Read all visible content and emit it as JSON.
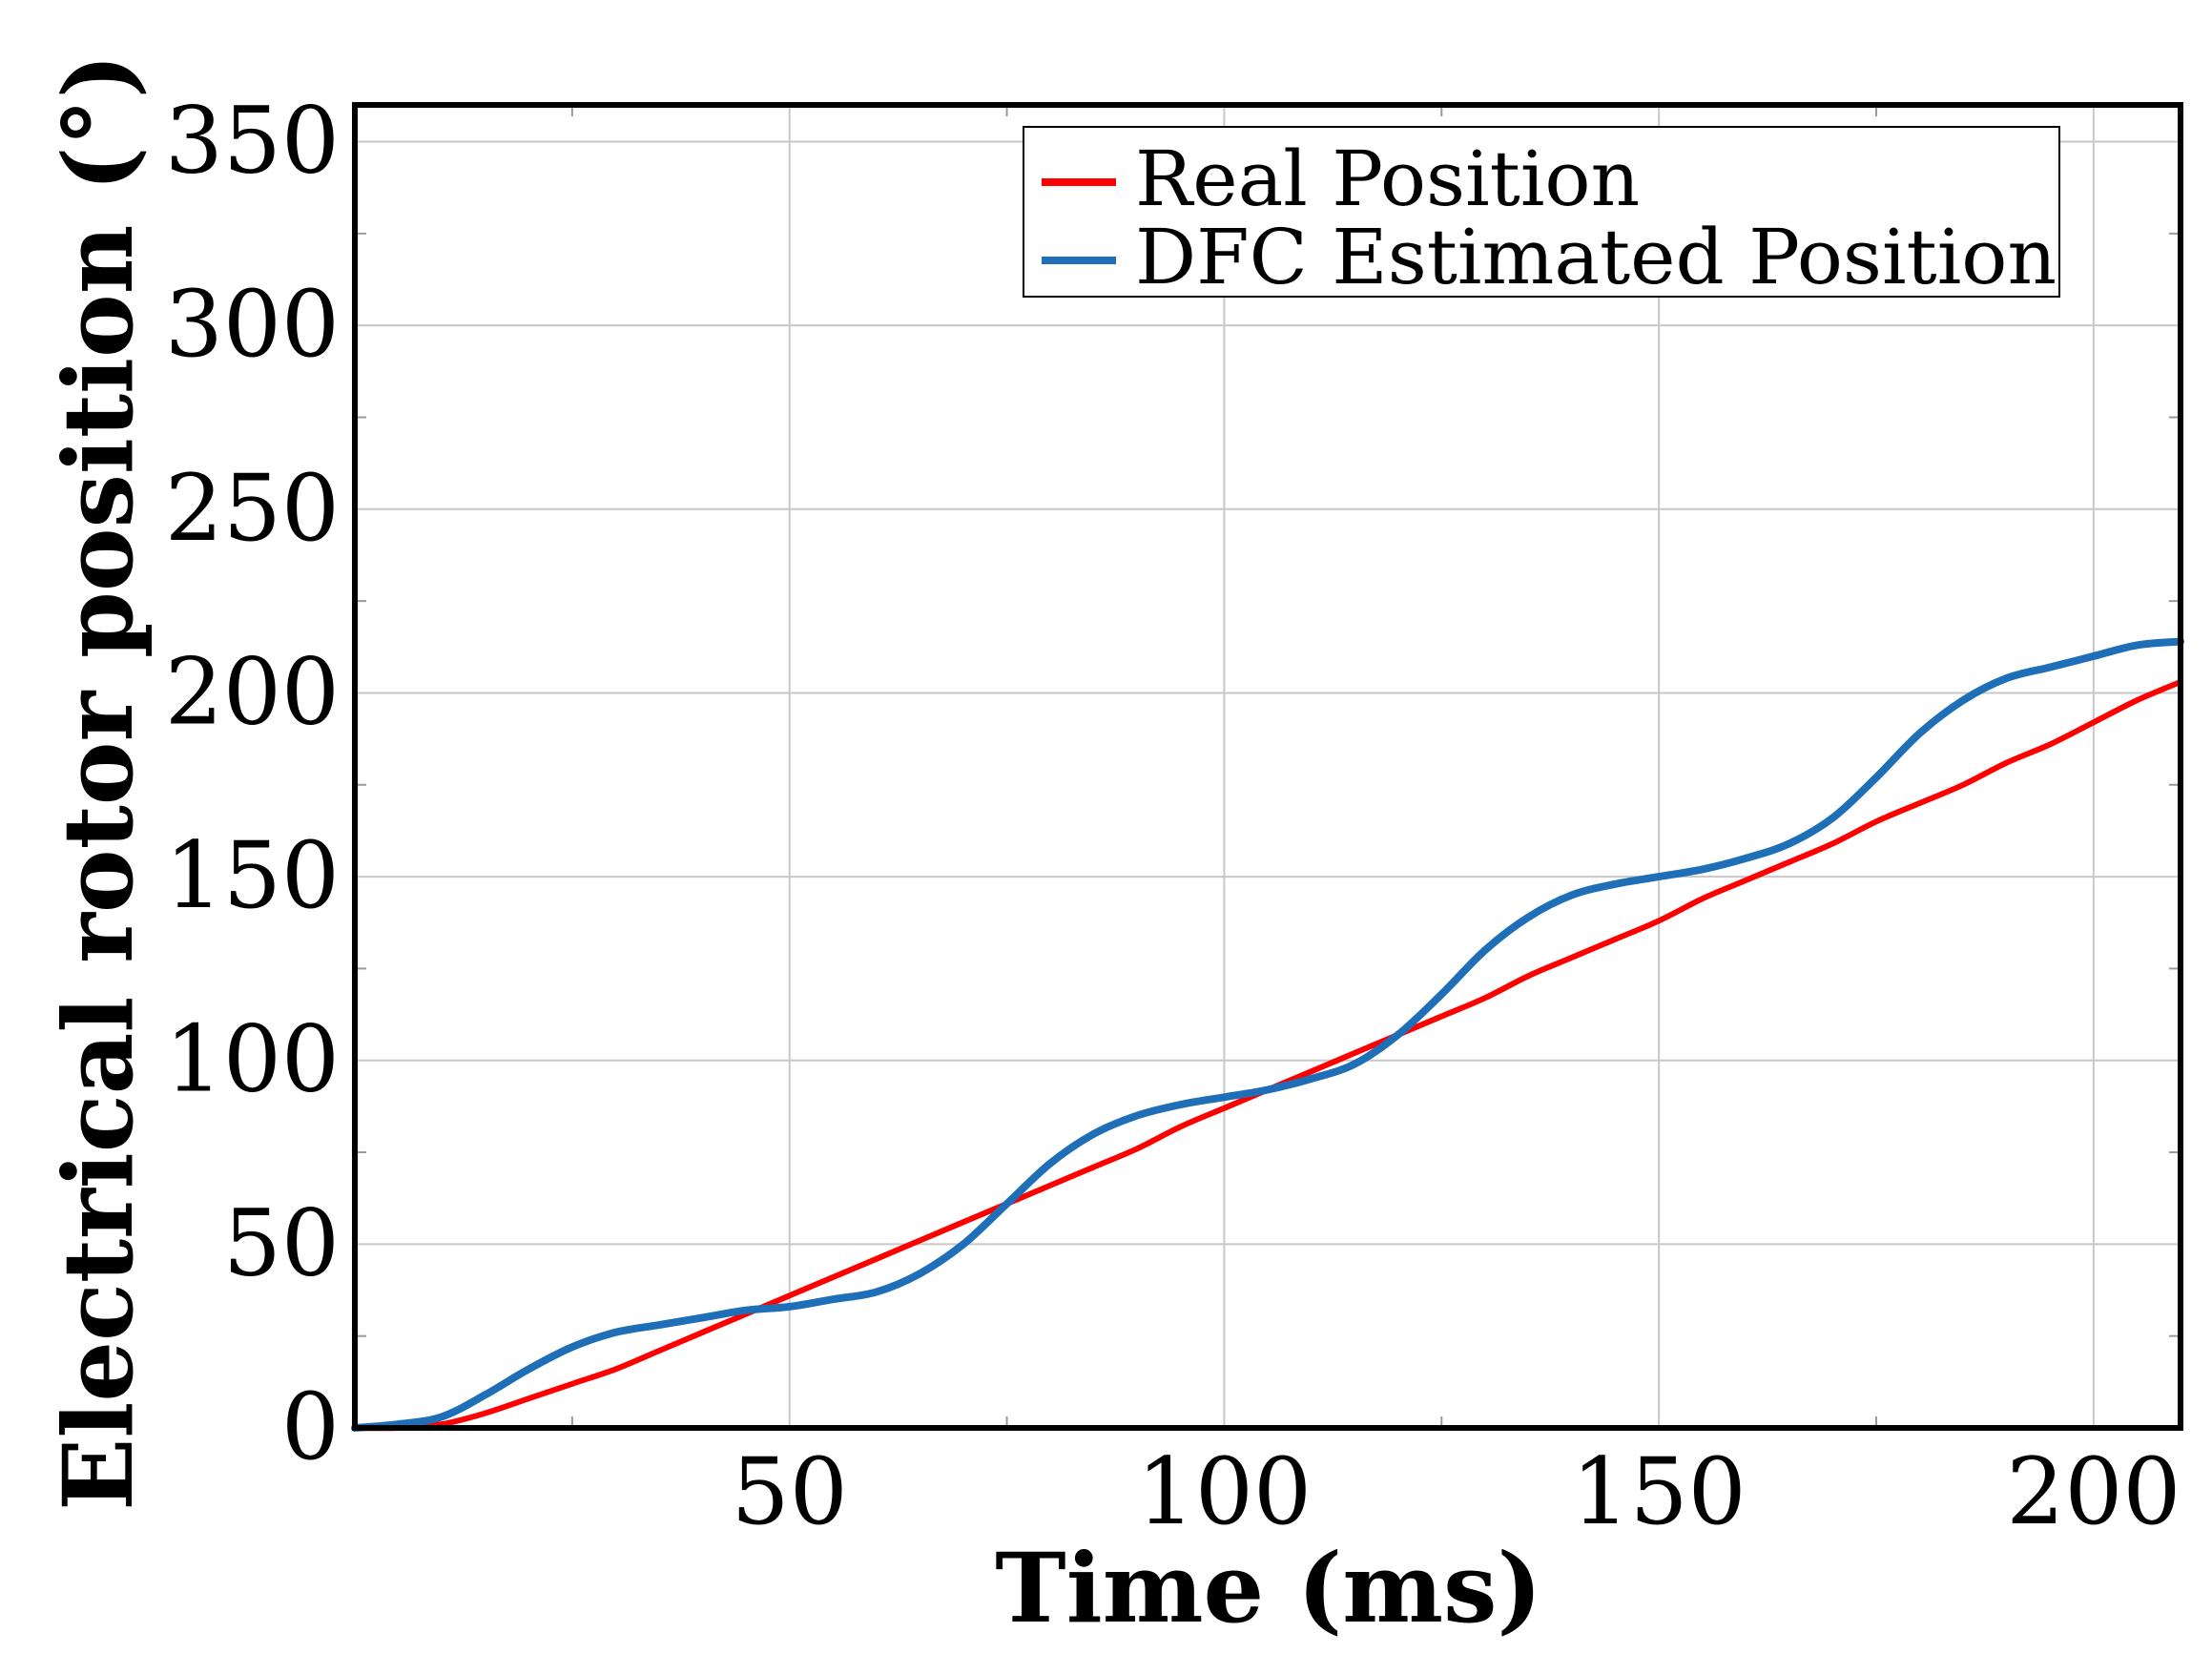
{
  "chart_data": {
    "type": "line",
    "title": "",
    "xlabel": "Time (ms)",
    "ylabel": "Electrical rotor position (°)",
    "xlim": [
      0,
      210
    ],
    "ylim": [
      0,
      360
    ],
    "x_ticks": [
      50,
      100,
      150,
      200
    ],
    "y_ticks": [
      0,
      50,
      100,
      150,
      200,
      250,
      300,
      350
    ],
    "x_tick_labels": [
      "50",
      "100",
      "150",
      "200"
    ],
    "y_tick_labels": [
      "0",
      "50",
      "100",
      "150",
      "200",
      "250",
      "300",
      "350"
    ],
    "grid": true,
    "legend_position": "top-right",
    "series": [
      {
        "name": "Real Position",
        "color": "#ff0000",
        "x": [
          0,
          5,
          10,
          15,
          20,
          25,
          30,
          35,
          40,
          45,
          50,
          55,
          60,
          65,
          70,
          75,
          80,
          85,
          90,
          95,
          100,
          105,
          110,
          115,
          120,
          125,
          130,
          135,
          140,
          145,
          150,
          155,
          160,
          165,
          170,
          175,
          180,
          185,
          190,
          195,
          200,
          205,
          210
        ],
        "y": [
          0,
          0,
          1,
          4,
          8,
          12,
          16,
          21,
          26,
          31,
          36,
          41,
          46,
          51,
          56,
          61,
          66,
          71,
          76,
          82,
          87,
          92,
          97,
          102,
          107,
          112,
          117,
          123,
          128,
          133,
          138,
          144,
          149,
          154,
          159,
          165,
          170,
          175,
          181,
          186,
          192,
          198,
          203
        ]
      },
      {
        "name": "DFC Estimated Position",
        "color": "#1f6fb8",
        "x": [
          0,
          5,
          10,
          15,
          20,
          25,
          30,
          35,
          40,
          45,
          50,
          55,
          60,
          65,
          70,
          75,
          80,
          85,
          90,
          95,
          100,
          105,
          110,
          115,
          120,
          125,
          130,
          135,
          140,
          145,
          150,
          155,
          160,
          165,
          170,
          175,
          180,
          185,
          190,
          195,
          200,
          205,
          210
        ],
        "y": [
          0,
          1,
          3,
          9,
          16,
          22,
          26,
          28,
          30,
          32,
          33,
          35,
          37,
          42,
          50,
          61,
          72,
          80,
          85,
          88,
          90,
          92,
          95,
          99,
          107,
          118,
          130,
          139,
          145,
          148,
          150,
          152,
          155,
          159,
          166,
          177,
          189,
          198,
          204,
          207,
          210,
          213,
          214
        ]
      }
    ]
  }
}
